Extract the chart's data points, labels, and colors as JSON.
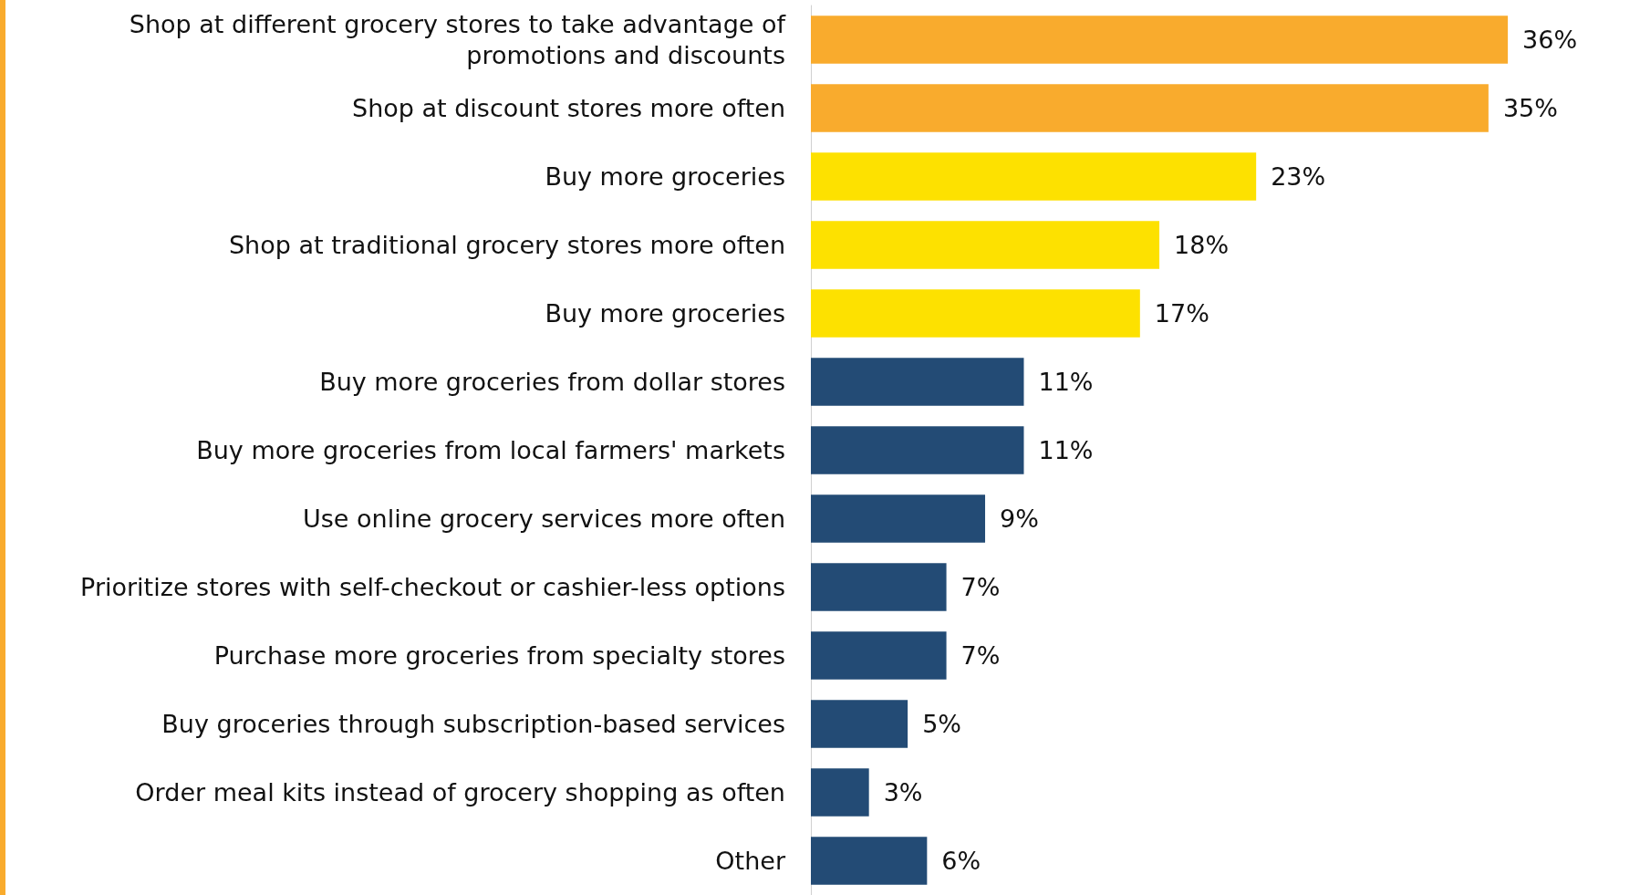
{
  "chart_data": {
    "type": "bar",
    "orientation": "horizontal",
    "categories": [
      "Shop at different grocery stores to take advantage of\npromotions and discounts",
      "Shop at discount stores more often",
      "Buy more groceries",
      "Shop at traditional grocery stores more often",
      "Buy more groceries",
      "Buy more groceries from dollar stores",
      "Buy more groceries from local farmers' markets",
      "Use online grocery services more often",
      "Prioritize stores with self-checkout or cashier-less options",
      "Purchase more groceries from specialty stores",
      "Buy groceries through subscription-based services",
      "Order meal kits instead of grocery shopping as often",
      "Other"
    ],
    "values": [
      36,
      35,
      23,
      18,
      17,
      11,
      11,
      9,
      7,
      7,
      5,
      3,
      6
    ],
    "colors": [
      "#f9ab2d",
      "#f9ab2d",
      "#fde100",
      "#fde100",
      "#fde100",
      "#234b75",
      "#234b75",
      "#234b75",
      "#234b75",
      "#234b75",
      "#234b75",
      "#234b75",
      "#234b75"
    ],
    "value_labels": [
      "36%",
      "35%",
      "23%",
      "18%",
      "17%",
      "11%",
      "11%",
      "9%",
      "7%",
      "7%",
      "5%",
      "3%",
      "6%"
    ]
  }
}
